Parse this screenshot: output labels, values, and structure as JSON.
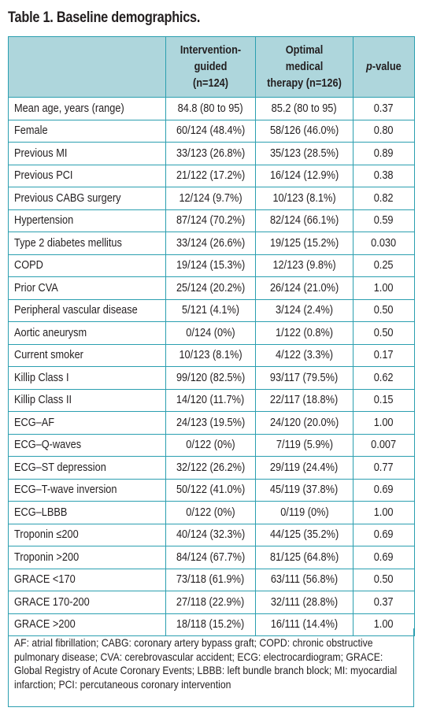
{
  "title": "Table 1. Baseline demographics.",
  "table": {
    "headers": [
      "",
      "Intervention-guided (n=124)",
      "Optimal medical therapy (n=126)",
      "p-value"
    ],
    "rows": [
      [
        "Mean age, years (range)",
        "84.8 (80 to 95)",
        "85.2 (80 to 95)",
        "0.37"
      ],
      [
        "Female",
        "60/124 (48.4%)",
        "58/126 (46.0%)",
        "0.80"
      ],
      [
        "Previous MI",
        "33/123 (26.8%)",
        "35/123 (28.5%)",
        "0.89"
      ],
      [
        "Previous PCI",
        "21/122 (17.2%)",
        "16/124 (12.9%)",
        "0.38"
      ],
      [
        "Previous CABG surgery",
        "12/124 (9.7%)",
        "10/123 (8.1%)",
        "0.82"
      ],
      [
        "Hypertension",
        "87/124 (70.2%)",
        "82/124 (66.1%)",
        "0.59"
      ],
      [
        "Type 2 diabetes mellitus",
        "33/124 (26.6%)",
        "19/125 (15.2%)",
        "0.030"
      ],
      [
        "COPD",
        "19/124 (15.3%)",
        "12/123 (9.8%)",
        "0.25"
      ],
      [
        "Prior CVA",
        "25/124 (20.2%)",
        "26/124 (21.0%)",
        "1.00"
      ],
      [
        "Peripheral vascular disease",
        "5/121 (4.1%)",
        "3/124 (2.4%)",
        "0.50"
      ],
      [
        "Aortic aneurysm",
        "0/124 (0%)",
        "1/122 (0.8%)",
        "0.50"
      ],
      [
        "Current smoker",
        "10/123 (8.1%)",
        "4/122 (3.3%)",
        "0.17"
      ],
      [
        "Killip Class I",
        "99/120 (82.5%)",
        "93/117 (79.5%)",
        "0.62"
      ],
      [
        "Killip Class II",
        "14/120 (11.7%)",
        "22/117 (18.8%)",
        "0.15"
      ],
      [
        "ECG–AF",
        "24/123 (19.5%)",
        "24/120 (20.0%)",
        "1.00"
      ],
      [
        "ECG–Q-waves",
        "0/122 (0%)",
        "7/119 (5.9%)",
        "0.007"
      ],
      [
        "ECG–ST depression",
        "32/122 (26.2%)",
        "29/119 (24.4%)",
        "0.77"
      ],
      [
        "ECG–T-wave inversion",
        "50/122 (41.0%)",
        "45/119 (37.8%)",
        "0.69"
      ],
      [
        "ECG–LBBB",
        "0/122 (0%)",
        "0/119 (0%)",
        "1.00"
      ],
      [
        "Troponin ≤200",
        "40/124 (32.3%)",
        "44/125 (35.2%)",
        "0.69"
      ],
      [
        "Troponin >200",
        "84/124 (67.7%)",
        "81/125 (64.8%)",
        "0.69"
      ],
      [
        "GRACE <170",
        "73/118 (61.9%)",
        "63/111 (56.8%)",
        "0.50"
      ],
      [
        "GRACE 170-200",
        "27/118 (22.9%)",
        "32/111 (28.8%)",
        "0.37"
      ],
      [
        "GRACE >200",
        "18/118 (15.2%)",
        "16/111 (14.4%)",
        "1.00"
      ]
    ]
  },
  "footnote": "AF: atrial fibrillation; CABG: coronary artery bypass graft; COPD: chronic obstructive pulmonary disease; CVA: cerebrovascular accident; ECG: electrocardiogram; GRACE: Global Registry of Acute Coronary Events; LBBB: left bundle branch block; MI: myocardial infarction; PCI: percutaneous coronary intervention",
  "colors": {
    "border": "#2b9fb0",
    "header_fill": "#aed6dc",
    "text": "#231f20"
  }
}
